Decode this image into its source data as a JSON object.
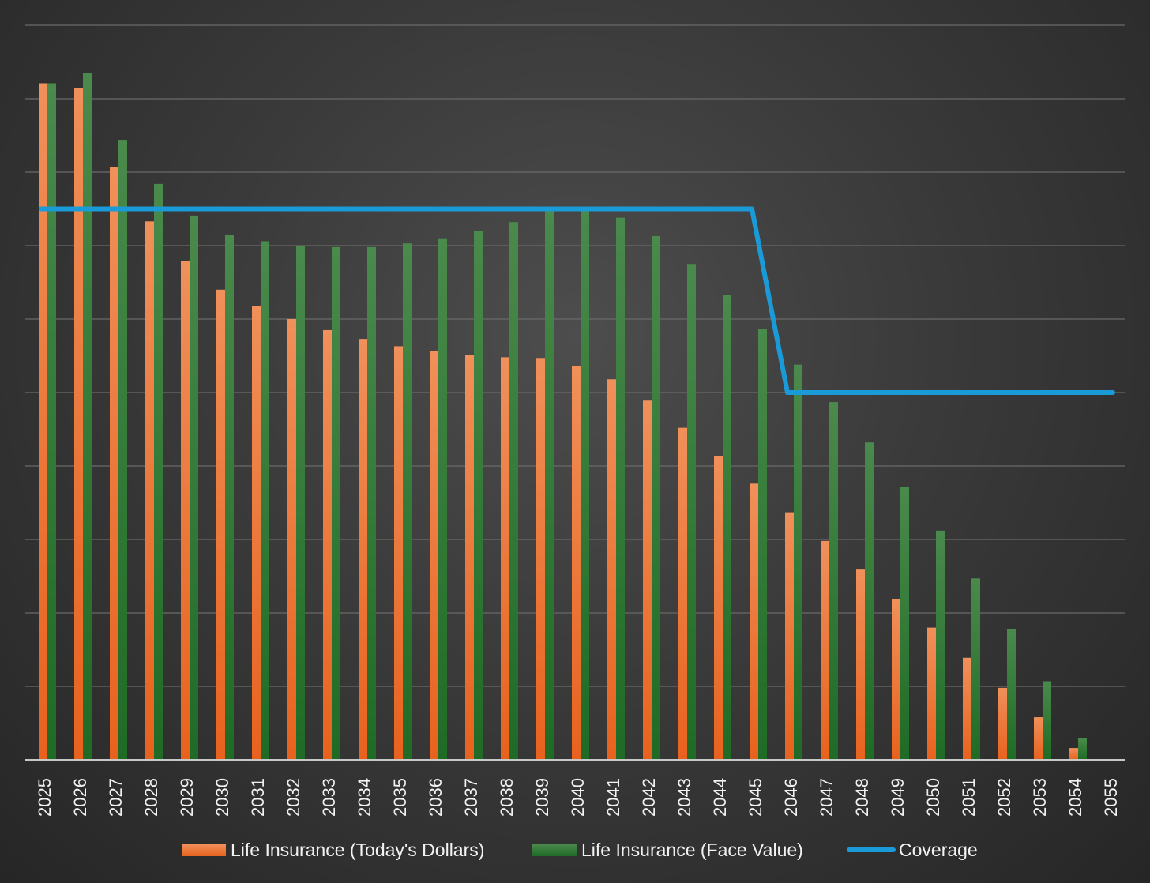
{
  "chart_data": {
    "type": "bar",
    "title": "",
    "xlabel": "",
    "ylabel": "",
    "grid": true,
    "legend_position": "bottom",
    "y_tick_labels_shown": false,
    "ylim": [
      0,
      100
    ],
    "categories": [
      "2025",
      "2026",
      "2027",
      "2028",
      "2029",
      "2030",
      "2031",
      "2032",
      "2033",
      "2034",
      "2035",
      "2036",
      "2037",
      "2038",
      "2039",
      "2040",
      "2041",
      "2042",
      "2043",
      "2044",
      "2045",
      "2046",
      "2047",
      "2048",
      "2049",
      "2050",
      "2051",
      "2052",
      "2053",
      "2054",
      "2055"
    ],
    "series": [
      {
        "name": "Life Insurance (Today's Dollars)",
        "kind": "bar",
        "color_top": "#f0905a",
        "color_bottom": "#e8621e",
        "values": [
          92.1,
          91.5,
          80.7,
          73.3,
          67.9,
          64.0,
          61.8,
          60.0,
          58.5,
          57.3,
          56.3,
          55.6,
          55.1,
          54.8,
          54.7,
          53.6,
          51.8,
          48.9,
          45.2,
          41.4,
          37.6,
          33.7,
          29.8,
          25.9,
          21.9,
          18.0,
          13.9,
          9.8,
          5.8,
          1.6,
          0
        ]
      },
      {
        "name": "Life Insurance (Face Value)",
        "kind": "bar",
        "color_top": "#4a8a4c",
        "color_bottom": "#1f6b25",
        "values": [
          92.1,
          93.5,
          84.4,
          78.4,
          74.1,
          71.5,
          70.6,
          70.0,
          69.8,
          69.8,
          70.3,
          71.0,
          72.0,
          73.2,
          75.2,
          75.2,
          73.8,
          71.3,
          67.5,
          63.3,
          58.7,
          53.8,
          48.7,
          43.2,
          37.2,
          31.2,
          24.7,
          17.8,
          10.7,
          2.9,
          0
        ]
      },
      {
        "name": "Coverage",
        "kind": "line",
        "color": "#1a9ad7",
        "values": [
          75,
          75,
          75,
          75,
          75,
          75,
          75,
          75,
          75,
          75,
          75,
          75,
          75,
          75,
          75,
          75,
          75,
          75,
          75,
          75,
          75,
          50,
          50,
          50,
          50,
          50,
          50,
          50,
          50,
          50,
          50
        ]
      }
    ]
  }
}
